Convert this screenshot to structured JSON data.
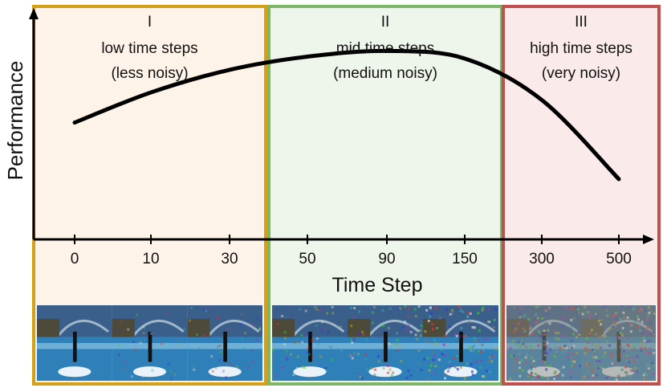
{
  "chart_data": {
    "type": "line",
    "ylabel": "Performance",
    "xlabel": "Time Step",
    "x_ticks": [
      "0",
      "10",
      "30",
      "50",
      "90",
      "150",
      "300",
      "500"
    ],
    "series": [
      {
        "x_tick_index": [
          0,
          1,
          2,
          3,
          4,
          5,
          6,
          7
        ],
        "values": [
          0.62,
          0.78,
          0.9,
          0.97,
          1.0,
          0.96,
          0.74,
          0.32
        ]
      }
    ],
    "ylim": [
      0,
      1.1
    ],
    "grid": false,
    "regions": [
      {
        "numeral": "I",
        "line1": "low time steps",
        "line2": "(less noisy)",
        "border": "#d4a017",
        "fill": "#fdf3e8"
      },
      {
        "numeral": "II",
        "line1": "mid time steps",
        "line2": "(medium noisy)",
        "border": "#7fb56a",
        "fill": "#eef5ea"
      },
      {
        "numeral": "III",
        "line1": "high time steps",
        "line2": "(very noisy)",
        "border": "#c0504d",
        "fill": "#fbeaea"
      }
    ],
    "image_strips": [
      {
        "region": 0,
        "noise": [
          0.0,
          0.05,
          0.1
        ]
      },
      {
        "region": 1,
        "noise": [
          0.2,
          0.35,
          0.55
        ]
      },
      {
        "region": 2,
        "noise": [
          0.85,
          1.0
        ]
      }
    ],
    "colors": {
      "curve": "#000000",
      "axis": "#000000",
      "pool": "#2f7fb8",
      "sky": "#3a5f8a"
    }
  }
}
